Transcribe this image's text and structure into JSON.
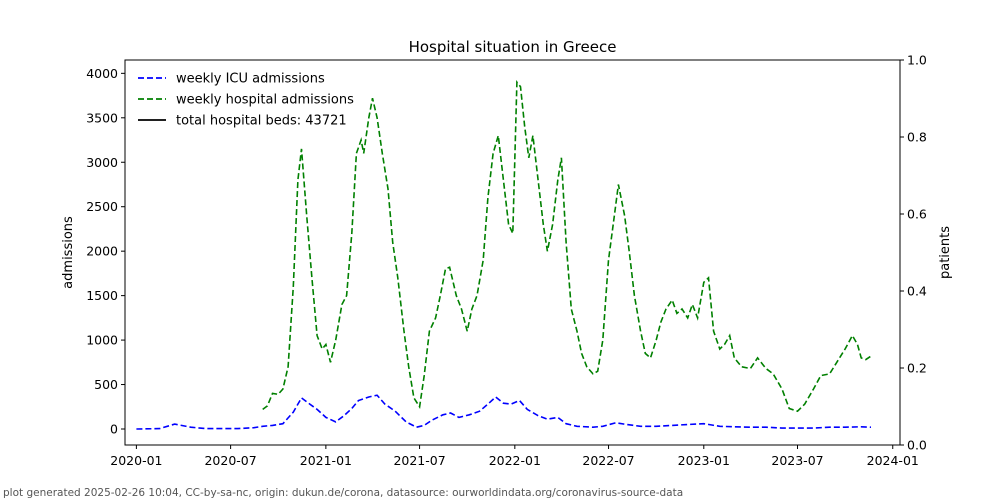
{
  "chart_data": {
    "type": "line",
    "title": "Hospital situation in Greece",
    "ylabel": "admissions",
    "ylabel_right": "patients",
    "ylim": [
      -180,
      4150
    ],
    "ylim_right": [
      0,
      1.0
    ],
    "xlim": [
      "2019-12-10",
      "2024-01-15"
    ],
    "grid": false,
    "legend_position": "top-left",
    "x_ticks": [
      "2020-01",
      "2020-07",
      "2021-01",
      "2021-07",
      "2022-01",
      "2022-07",
      "2023-01",
      "2023-07",
      "2024-01"
    ],
    "y_ticks": [
      0,
      500,
      1000,
      1500,
      2000,
      2500,
      3000,
      3500,
      4000
    ],
    "y_ticks_right": [
      "0.0",
      "0.2",
      "0.4",
      "0.6",
      "0.8",
      "1.0"
    ],
    "series": [
      {
        "name": "weekly ICU admissions",
        "color": "#0000ff",
        "style": "dashed",
        "points": [
          [
            "2020-01-01",
            0
          ],
          [
            "2020-02-15",
            5
          ],
          [
            "2020-03-15",
            55
          ],
          [
            "2020-04-15",
            20
          ],
          [
            "2020-05-15",
            5
          ],
          [
            "2020-06-15",
            5
          ],
          [
            "2020-07-15",
            5
          ],
          [
            "2020-08-15",
            15
          ],
          [
            "2020-09-01",
            30
          ],
          [
            "2020-09-20",
            40
          ],
          [
            "2020-10-10",
            60
          ],
          [
            "2020-10-30",
            190
          ],
          [
            "2020-11-15",
            350
          ],
          [
            "2020-12-01",
            280
          ],
          [
            "2020-12-15",
            220
          ],
          [
            "2021-01-01",
            130
          ],
          [
            "2021-01-20",
            80
          ],
          [
            "2021-02-05",
            150
          ],
          [
            "2021-02-20",
            230
          ],
          [
            "2021-03-05",
            320
          ],
          [
            "2021-03-25",
            360
          ],
          [
            "2021-04-10",
            380
          ],
          [
            "2021-04-25",
            280
          ],
          [
            "2021-05-15",
            200
          ],
          [
            "2021-06-05",
            80
          ],
          [
            "2021-06-25",
            20
          ],
          [
            "2021-07-10",
            40
          ],
          [
            "2021-07-25",
            100
          ],
          [
            "2021-08-15",
            160
          ],
          [
            "2021-08-30",
            180
          ],
          [
            "2021-09-15",
            130
          ],
          [
            "2021-10-05",
            160
          ],
          [
            "2021-10-25",
            200
          ],
          [
            "2021-11-10",
            280
          ],
          [
            "2021-11-25",
            360
          ],
          [
            "2021-12-10",
            290
          ],
          [
            "2021-12-25",
            280
          ],
          [
            "2022-01-10",
            320
          ],
          [
            "2022-01-25",
            220
          ],
          [
            "2022-02-15",
            150
          ],
          [
            "2022-03-05",
            110
          ],
          [
            "2022-03-25",
            130
          ],
          [
            "2022-04-10",
            60
          ],
          [
            "2022-05-01",
            30
          ],
          [
            "2022-06-01",
            20
          ],
          [
            "2022-06-20",
            30
          ],
          [
            "2022-07-15",
            70
          ],
          [
            "2022-08-05",
            50
          ],
          [
            "2022-09-01",
            30
          ],
          [
            "2022-10-01",
            30
          ],
          [
            "2022-11-01",
            40
          ],
          [
            "2022-12-01",
            50
          ],
          [
            "2023-01-01",
            60
          ],
          [
            "2023-02-01",
            30
          ],
          [
            "2023-03-01",
            25
          ],
          [
            "2023-04-01",
            20
          ],
          [
            "2023-05-01",
            20
          ],
          [
            "2023-06-01",
            10
          ],
          [
            "2023-07-01",
            10
          ],
          [
            "2023-08-01",
            10
          ],
          [
            "2023-09-01",
            20
          ],
          [
            "2023-10-01",
            20
          ],
          [
            "2023-11-01",
            25
          ],
          [
            "2023-11-20",
            20
          ]
        ]
      },
      {
        "name": "weekly hospital admissions",
        "color": "#008000",
        "style": "dashed",
        "points": [
          [
            "2020-09-01",
            220
          ],
          [
            "2020-09-10",
            260
          ],
          [
            "2020-09-20",
            400
          ],
          [
            "2020-10-01",
            390
          ],
          [
            "2020-10-10",
            450
          ],
          [
            "2020-10-20",
            700
          ],
          [
            "2020-10-30",
            1600
          ],
          [
            "2020-11-08",
            2800
          ],
          [
            "2020-11-15",
            3150
          ],
          [
            "2020-11-25",
            2400
          ],
          [
            "2020-12-05",
            1700
          ],
          [
            "2020-12-15",
            1050
          ],
          [
            "2020-12-25",
            900
          ],
          [
            "2021-01-01",
            950
          ],
          [
            "2021-01-10",
            750
          ],
          [
            "2021-01-20",
            1000
          ],
          [
            "2021-02-01",
            1400
          ],
          [
            "2021-02-10",
            1500
          ],
          [
            "2021-02-20",
            2200
          ],
          [
            "2021-03-01",
            3100
          ],
          [
            "2021-03-10",
            3250
          ],
          [
            "2021-03-15",
            3100
          ],
          [
            "2021-03-25",
            3500
          ],
          [
            "2021-04-01",
            3720
          ],
          [
            "2021-04-10",
            3500
          ],
          [
            "2021-04-20",
            3100
          ],
          [
            "2021-05-01",
            2700
          ],
          [
            "2021-05-10",
            2100
          ],
          [
            "2021-05-20",
            1700
          ],
          [
            "2021-06-01",
            1100
          ],
          [
            "2021-06-10",
            700
          ],
          [
            "2021-06-20",
            350
          ],
          [
            "2021-07-01",
            250
          ],
          [
            "2021-07-10",
            600
          ],
          [
            "2021-07-20",
            1100
          ],
          [
            "2021-08-01",
            1250
          ],
          [
            "2021-08-10",
            1500
          ],
          [
            "2021-08-20",
            1800
          ],
          [
            "2021-08-28",
            1820
          ],
          [
            "2021-09-10",
            1500
          ],
          [
            "2021-09-20",
            1350
          ],
          [
            "2021-10-01",
            1100
          ],
          [
            "2021-10-10",
            1350
          ],
          [
            "2021-10-20",
            1500
          ],
          [
            "2021-11-01",
            1900
          ],
          [
            "2021-11-10",
            2600
          ],
          [
            "2021-11-20",
            3100
          ],
          [
            "2021-11-30",
            3300
          ],
          [
            "2021-12-10",
            2800
          ],
          [
            "2021-12-20",
            2300
          ],
          [
            "2021-12-28",
            2200
          ],
          [
            "2022-01-05",
            3900
          ],
          [
            "2022-01-12",
            3850
          ],
          [
            "2022-01-20",
            3400
          ],
          [
            "2022-01-28",
            3050
          ],
          [
            "2022-02-05",
            3300
          ],
          [
            "2022-02-15",
            2800
          ],
          [
            "2022-02-25",
            2300
          ],
          [
            "2022-03-05",
            2000
          ],
          [
            "2022-03-15",
            2300
          ],
          [
            "2022-03-25",
            2800
          ],
          [
            "2022-04-01",
            3050
          ],
          [
            "2022-04-10",
            2100
          ],
          [
            "2022-04-20",
            1350
          ],
          [
            "2022-05-01",
            1100
          ],
          [
            "2022-05-10",
            850
          ],
          [
            "2022-05-20",
            700
          ],
          [
            "2022-06-01",
            620
          ],
          [
            "2022-06-10",
            650
          ],
          [
            "2022-06-20",
            1000
          ],
          [
            "2022-07-01",
            1900
          ],
          [
            "2022-07-10",
            2300
          ],
          [
            "2022-07-20",
            2750
          ],
          [
            "2022-08-01",
            2400
          ],
          [
            "2022-08-10",
            2000
          ],
          [
            "2022-08-20",
            1500
          ],
          [
            "2022-09-01",
            1100
          ],
          [
            "2022-09-10",
            850
          ],
          [
            "2022-09-20",
            800
          ],
          [
            "2022-10-01",
            1000
          ],
          [
            "2022-10-10",
            1200
          ],
          [
            "2022-10-20",
            1350
          ],
          [
            "2022-11-01",
            1450
          ],
          [
            "2022-11-10",
            1300
          ],
          [
            "2022-11-20",
            1350
          ],
          [
            "2022-12-01",
            1250
          ],
          [
            "2022-12-10",
            1400
          ],
          [
            "2022-12-20",
            1250
          ],
          [
            "2023-01-01",
            1650
          ],
          [
            "2023-01-10",
            1700
          ],
          [
            "2023-01-20",
            1100
          ],
          [
            "2023-02-01",
            900
          ],
          [
            "2023-02-10",
            950
          ],
          [
            "2023-02-20",
            1050
          ],
          [
            "2023-03-01",
            800
          ],
          [
            "2023-03-15",
            700
          ],
          [
            "2023-04-01",
            680
          ],
          [
            "2023-04-15",
            800
          ],
          [
            "2023-05-01",
            680
          ],
          [
            "2023-05-15",
            620
          ],
          [
            "2023-06-01",
            450
          ],
          [
            "2023-06-15",
            230
          ],
          [
            "2023-07-01",
            200
          ],
          [
            "2023-07-15",
            280
          ],
          [
            "2023-08-01",
            450
          ],
          [
            "2023-08-15",
            600
          ],
          [
            "2023-09-01",
            620
          ],
          [
            "2023-09-15",
            750
          ],
          [
            "2023-10-01",
            900
          ],
          [
            "2023-10-15",
            1050
          ],
          [
            "2023-10-25",
            950
          ],
          [
            "2023-11-01",
            800
          ],
          [
            "2023-11-10",
            780
          ],
          [
            "2023-11-20",
            820
          ]
        ]
      },
      {
        "name": "total hospital beds: 43721",
        "color": "#000000",
        "style": "solid",
        "points": []
      }
    ]
  },
  "footer": "plot generated 2025-02-26 10:04, CC-by-sa-nc, origin: dukun.de/corona, datasource: ourworldindata.org/coronavirus-source-data"
}
